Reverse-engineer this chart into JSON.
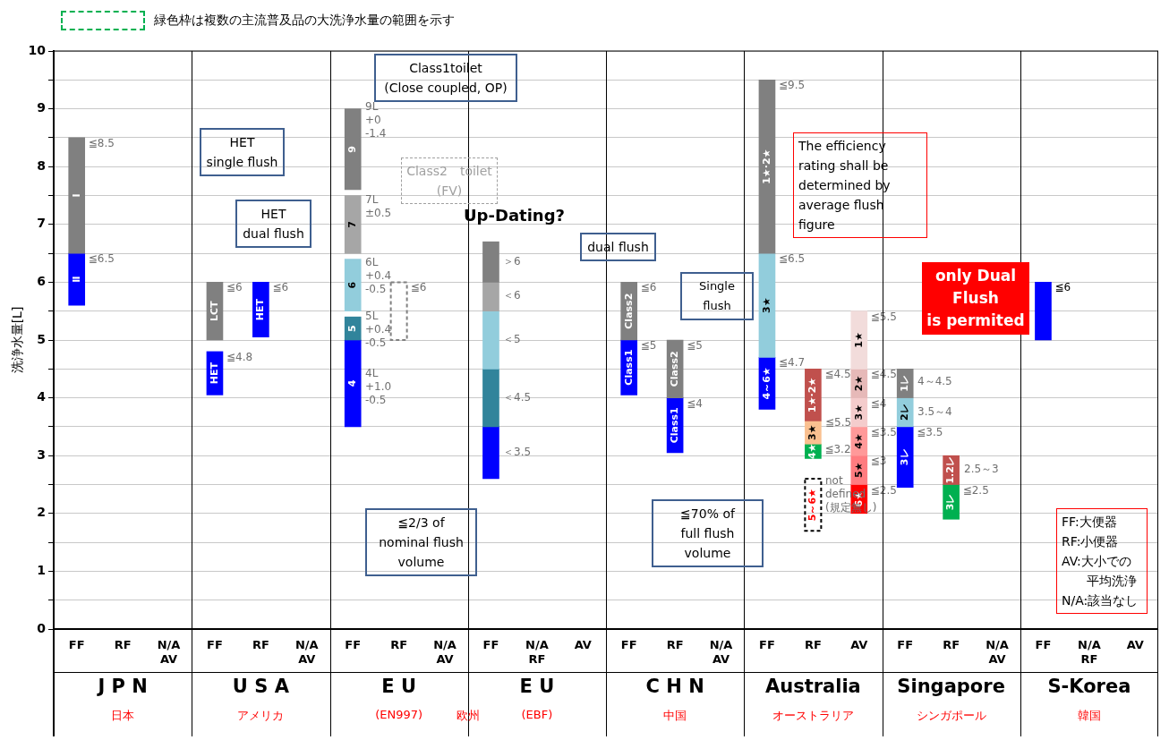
{
  "chart_data": {
    "type": "bar",
    "categories": [
      "FF",
      "RF",
      "N/A\nAV",
      "FF",
      "RF",
      "N/A\nAV",
      "FF",
      "RF",
      "N/A\nAV",
      "FF",
      "N/A\nRF",
      "AV",
      "FF",
      "RF",
      "N/A\nAV",
      "FF",
      "RF",
      "AV",
      "FF",
      "RF",
      "N/A\nAV",
      "FF",
      "N/A\nRF",
      "AV"
    ],
    "ylabel": "洗浄水量[L]",
    "ylim": [
      0,
      10
    ],
    "yticks": [
      0,
      {
        "value": 0.5,
        "label": null
      },
      1,
      {
        "value": 1.5,
        "label": null
      },
      2,
      {
        "value": 2.5,
        "label": null
      },
      3,
      {
        "value": 3.5,
        "label": null
      },
      4,
      {
        "value": 4.5,
        "label": null
      },
      5,
      {
        "value": 5.5,
        "label": null
      },
      6,
      {
        "value": 6.5,
        "label": null
      },
      7,
      {
        "value": 7.5,
        "label": null
      },
      8,
      {
        "value": 8.5,
        "label": null
      },
      9,
      {
        "value": 9.5,
        "label": null
      },
      10
    ],
    "grid": "y",
    "annotations": [
      "緑色枠は複数の主流普及品の大洗浄水量の範囲を示す",
      "Class1toilet\n(Close coupled, OP)",
      "HET\nsingle flush",
      "HET\ndual flush",
      "Class2　toilet\n(FV)",
      "Up-Dating?",
      "dual flush",
      "Single flush",
      "The efficiency rating shall be determined by average flush figure",
      "only Dual\nFlush\nis permited",
      "≦2/3 of\nnominal flush\nvolume",
      "≦70% of\nfull flush\nvolume",
      "FF:大便器\nRF:小便器\nAV:大小での平均洗浄\nN/A:該当なし",
      "J P N",
      "日本",
      "U S A",
      "アメリカ",
      "E U",
      "(EN997)",
      "E U",
      "(EBF)",
      "欧州",
      "C H N",
      "中国",
      "Australia",
      "オーストラリア",
      "Singapore",
      "シンガポール",
      "S-Korea",
      "韓国",
      "9L\n+0\n-1.4",
      "7L\n±0.5",
      "6L\n+0.4\n-0.5",
      "5L\n+0.4\n-0.5",
      "4L\n+1.0\n-0.5",
      "＞6",
      "＜6",
      "＜5",
      "＜4.5",
      "＜3.5",
      "≦5.5",
      "not\ndefined\n(規定無し)",
      "4～4.5",
      "3.5～4",
      "2.5～3",
      "≦8.5",
      "≦6.5",
      "≦6",
      "≦4.8",
      "≦6",
      "≦6",
      "≦6",
      "≦5",
      "≦5",
      "≦4",
      "≦9.5",
      "≦6.5",
      "≦4.7",
      "≦4.5",
      "≦3.2",
      "≦5.5",
      "≦4.5",
      "≦4",
      "≦3.5",
      "≦3",
      "≦2.5",
      "≦3.5",
      "≦2.5",
      "≦6"
    ],
    "series": [
      {
        "name": "Ⅰ",
        "color": "#808080",
        "values": [
          2,
          null,
          null,
          null,
          null,
          null,
          null,
          null,
          null,
          null,
          null,
          null,
          null,
          null,
          null,
          null,
          null,
          null,
          null,
          null,
          null,
          null,
          null,
          null
        ],
        "base": [
          6.5,
          null,
          null,
          null,
          null,
          null,
          null,
          null,
          null,
          null,
          null,
          null,
          null,
          null,
          null,
          null,
          null,
          null,
          null,
          null,
          null,
          null,
          null,
          null
        ]
      },
      {
        "name": "Ⅱ",
        "color": "#0000ff",
        "values": [
          0.9,
          null,
          null,
          null,
          null,
          null,
          null,
          null,
          null,
          null,
          null,
          null,
          null,
          null,
          null,
          null,
          null,
          null,
          null,
          null,
          null,
          null,
          null,
          null
        ],
        "base": [
          5.6,
          null,
          null,
          null,
          null,
          null,
          null,
          null,
          null,
          null,
          null,
          null,
          null,
          null,
          null,
          null,
          null,
          null,
          null,
          null,
          null,
          null,
          null,
          null
        ]
      },
      {
        "name": "LCT",
        "color": "#808080",
        "values": [
          null,
          null,
          null,
          1,
          null,
          null,
          null,
          null,
          null,
          null,
          null,
          null,
          null,
          null,
          null,
          null,
          null,
          null,
          null,
          null,
          null,
          null,
          null,
          null
        ],
        "base": [
          null,
          null,
          null,
          5,
          null,
          null,
          null,
          null,
          null,
          null,
          null,
          null,
          null,
          null,
          null,
          null,
          null,
          null,
          null,
          null,
          null,
          null,
          null,
          null
        ]
      },
      {
        "name": "HET",
        "color": "#0000ff",
        "values": [
          null,
          null,
          null,
          0.75,
          null,
          null,
          null,
          null,
          null,
          null,
          null,
          null,
          null,
          null,
          null,
          null,
          null,
          null,
          null,
          null,
          null,
          null,
          null,
          null
        ],
        "base": [
          null,
          null,
          null,
          4.05,
          null,
          null,
          null,
          null,
          null,
          null,
          null,
          null,
          null,
          null,
          null,
          null,
          null,
          null,
          null,
          null,
          null,
          null,
          null,
          null
        ]
      },
      {
        "name": "HET",
        "color": "#0000ff",
        "values": [
          null,
          null,
          null,
          null,
          0.95,
          null,
          null,
          null,
          null,
          null,
          null,
          null,
          null,
          null,
          null,
          null,
          null,
          null,
          null,
          null,
          null,
          null,
          null,
          null
        ],
        "base": [
          null,
          null,
          null,
          null,
          5.05,
          null,
          null,
          null,
          null,
          null,
          null,
          null,
          null,
          null,
          null,
          null,
          null,
          null,
          null,
          null,
          null,
          null,
          null,
          null
        ]
      },
      {
        "name": "9",
        "color": "#808080",
        "values": [
          null,
          null,
          null,
          null,
          null,
          null,
          1.4,
          null,
          null,
          null,
          null,
          null,
          null,
          null,
          null,
          null,
          null,
          null,
          null,
          null,
          null,
          null,
          null,
          null
        ],
        "base": [
          null,
          null,
          null,
          null,
          null,
          null,
          7.6,
          null,
          null,
          null,
          null,
          null,
          null,
          null,
          null,
          null,
          null,
          null,
          null,
          null,
          null,
          null,
          null,
          null
        ]
      },
      {
        "name": "7",
        "color": "#a6a6a6",
        "values": [
          null,
          null,
          null,
          null,
          null,
          null,
          1,
          null,
          null,
          null,
          null,
          null,
          null,
          null,
          null,
          null,
          null,
          null,
          null,
          null,
          null,
          null,
          null,
          null
        ],
        "base": [
          null,
          null,
          null,
          null,
          null,
          null,
          6.5,
          null,
          null,
          null,
          null,
          null,
          null,
          null,
          null,
          null,
          null,
          null,
          null,
          null,
          null,
          null,
          null,
          null
        ]
      },
      {
        "name": "6",
        "color": "#92cddc",
        "values": [
          null,
          null,
          null,
          null,
          null,
          null,
          0.9,
          null,
          null,
          null,
          null,
          null,
          null,
          null,
          null,
          null,
          null,
          null,
          null,
          null,
          null,
          null,
          null,
          null
        ],
        "base": [
          null,
          null,
          null,
          null,
          null,
          null,
          5.5,
          null,
          null,
          null,
          null,
          null,
          null,
          null,
          null,
          null,
          null,
          null,
          null,
          null,
          null,
          null,
          null,
          null
        ]
      },
      {
        "name": "5",
        "color": "#31849b",
        "values": [
          null,
          null,
          null,
          null,
          null,
          null,
          0.4,
          null,
          null,
          null,
          null,
          null,
          null,
          null,
          null,
          null,
          null,
          null,
          null,
          null,
          null,
          null,
          null,
          null
        ],
        "base": [
          null,
          null,
          null,
          null,
          null,
          null,
          5,
          null,
          null,
          null,
          null,
          null,
          null,
          null,
          null,
          null,
          null,
          null,
          null,
          null,
          null,
          null,
          null,
          null
        ]
      },
      {
        "name": "4",
        "color": "#0000ff",
        "values": [
          null,
          null,
          null,
          null,
          null,
          null,
          1.5,
          null,
          null,
          null,
          null,
          null,
          null,
          null,
          null,
          null,
          null,
          null,
          null,
          null,
          null,
          null,
          null,
          null
        ],
        "base": [
          null,
          null,
          null,
          null,
          null,
          null,
          3.5,
          null,
          null,
          null,
          null,
          null,
          null,
          null,
          null,
          null,
          null,
          null,
          null,
          null,
          null,
          null,
          null,
          null
        ]
      },
      {
        "color": "#808080",
        "line_style": "dashed",
        "values": [
          null,
          null,
          null,
          null,
          null,
          null,
          null,
          1,
          null,
          null,
          null,
          null,
          null,
          null,
          null,
          null,
          null,
          null,
          null,
          null,
          null,
          null,
          null,
          null
        ],
        "base": [
          null,
          null,
          null,
          null,
          null,
          null,
          null,
          5,
          null,
          null,
          null,
          null,
          null,
          null,
          null,
          null,
          null,
          null,
          null,
          null,
          null,
          null,
          null,
          null
        ]
      },
      {
        "color": "#808080",
        "values": [
          null,
          null,
          null,
          null,
          null,
          null,
          null,
          null,
          null,
          0.7,
          null,
          null,
          null,
          null,
          null,
          null,
          null,
          null,
          null,
          null,
          null,
          null,
          null,
          null
        ],
        "base": [
          null,
          null,
          null,
          null,
          null,
          null,
          null,
          null,
          null,
          6,
          null,
          null,
          null,
          null,
          null,
          null,
          null,
          null,
          null,
          null,
          null,
          null,
          null,
          null
        ]
      },
      {
        "color": "#a6a6a6",
        "values": [
          null,
          null,
          null,
          null,
          null,
          null,
          null,
          null,
          null,
          0.5,
          null,
          null,
          null,
          null,
          null,
          null,
          null,
          null,
          null,
          null,
          null,
          null,
          null,
          null
        ],
        "base": [
          null,
          null,
          null,
          null,
          null,
          null,
          null,
          null,
          null,
          5.5,
          null,
          null,
          null,
          null,
          null,
          null,
          null,
          null,
          null,
          null,
          null,
          null,
          null,
          null
        ]
      },
      {
        "color": "#92cddc",
        "values": [
          null,
          null,
          null,
          null,
          null,
          null,
          null,
          null,
          null,
          1,
          null,
          null,
          null,
          null,
          null,
          null,
          null,
          null,
          null,
          null,
          null,
          null,
          null,
          null
        ],
        "base": [
          null,
          null,
          null,
          null,
          null,
          null,
          null,
          null,
          null,
          4.5,
          null,
          null,
          null,
          null,
          null,
          null,
          null,
          null,
          null,
          null,
          null,
          null,
          null,
          null
        ]
      },
      {
        "color": "#31849b",
        "values": [
          null,
          null,
          null,
          null,
          null,
          null,
          null,
          null,
          null,
          1,
          null,
          null,
          null,
          null,
          null,
          null,
          null,
          null,
          null,
          null,
          null,
          null,
          null,
          null
        ],
        "base": [
          null,
          null,
          null,
          null,
          null,
          null,
          null,
          null,
          null,
          3.5,
          null,
          null,
          null,
          null,
          null,
          null,
          null,
          null,
          null,
          null,
          null,
          null,
          null,
          null
        ]
      },
      {
        "color": "#0000ff",
        "values": [
          null,
          null,
          null,
          null,
          null,
          null,
          null,
          null,
          null,
          0.9,
          null,
          null,
          null,
          null,
          null,
          null,
          null,
          null,
          null,
          null,
          null,
          null,
          null,
          null
        ],
        "base": [
          null,
          null,
          null,
          null,
          null,
          null,
          null,
          null,
          null,
          2.6,
          null,
          null,
          null,
          null,
          null,
          null,
          null,
          null,
          null,
          null,
          null,
          null,
          null,
          null
        ]
      },
      {
        "name": "Class2",
        "color": "#808080",
        "values": [
          null,
          null,
          null,
          null,
          null,
          null,
          null,
          null,
          null,
          null,
          null,
          null,
          1,
          null,
          null,
          null,
          null,
          null,
          null,
          null,
          null,
          null,
          null,
          null
        ],
        "base": [
          null,
          null,
          null,
          null,
          null,
          null,
          null,
          null,
          null,
          null,
          null,
          null,
          5,
          null,
          null,
          null,
          null,
          null,
          null,
          null,
          null,
          null,
          null,
          null
        ]
      },
      {
        "name": "Class1",
        "color": "#0000ff",
        "values": [
          null,
          null,
          null,
          null,
          null,
          null,
          null,
          null,
          null,
          null,
          null,
          null,
          0.95,
          null,
          null,
          null,
          null,
          null,
          null,
          null,
          null,
          null,
          null,
          null
        ],
        "base": [
          null,
          null,
          null,
          null,
          null,
          null,
          null,
          null,
          null,
          null,
          null,
          null,
          4.05,
          null,
          null,
          null,
          null,
          null,
          null,
          null,
          null,
          null,
          null,
          null
        ]
      },
      {
        "name": "Class2",
        "color": "#808080",
        "values": [
          null,
          null,
          null,
          null,
          null,
          null,
          null,
          null,
          null,
          null,
          null,
          null,
          null,
          1,
          null,
          null,
          null,
          null,
          null,
          null,
          null,
          null,
          null,
          null
        ],
        "base": [
          null,
          null,
          null,
          null,
          null,
          null,
          null,
          null,
          null,
          null,
          null,
          null,
          null,
          4,
          null,
          null,
          null,
          null,
          null,
          null,
          null,
          null,
          null,
          null
        ]
      },
      {
        "name": "Class1",
        "color": "#0000ff",
        "values": [
          null,
          null,
          null,
          null,
          null,
          null,
          null,
          null,
          null,
          null,
          null,
          null,
          null,
          0.95,
          null,
          null,
          null,
          null,
          null,
          null,
          null,
          null,
          null,
          null
        ],
        "base": [
          null,
          null,
          null,
          null,
          null,
          null,
          null,
          null,
          null,
          null,
          null,
          null,
          null,
          3.05,
          null,
          null,
          null,
          null,
          null,
          null,
          null,
          null,
          null,
          null
        ]
      },
      {
        "name": "1★·2★",
        "color": "#808080",
        "values": [
          null,
          null,
          null,
          null,
          null,
          null,
          null,
          null,
          null,
          null,
          null,
          null,
          null,
          null,
          null,
          3,
          null,
          null,
          null,
          null,
          null,
          null,
          null,
          null
        ],
        "base": [
          null,
          null,
          null,
          null,
          null,
          null,
          null,
          null,
          null,
          null,
          null,
          null,
          null,
          null,
          null,
          6.5,
          null,
          null,
          null,
          null,
          null,
          null,
          null,
          null
        ]
      },
      {
        "name": "3★",
        "color": "#92cddc",
        "values": [
          null,
          null,
          null,
          null,
          null,
          null,
          null,
          null,
          null,
          null,
          null,
          null,
          null,
          null,
          null,
          1.8,
          null,
          null,
          null,
          null,
          null,
          null,
          null,
          null
        ],
        "base": [
          null,
          null,
          null,
          null,
          null,
          null,
          null,
          null,
          null,
          null,
          null,
          null,
          null,
          null,
          null,
          4.7,
          null,
          null,
          null,
          null,
          null,
          null,
          null,
          null
        ]
      },
      {
        "name": "4～6★",
        "color": "#0000ff",
        "values": [
          null,
          null,
          null,
          null,
          null,
          null,
          null,
          null,
          null,
          null,
          null,
          null,
          null,
          null,
          null,
          0.9,
          null,
          null,
          null,
          null,
          null,
          null,
          null,
          null
        ],
        "base": [
          null,
          null,
          null,
          null,
          null,
          null,
          null,
          null,
          null,
          null,
          null,
          null,
          null,
          null,
          null,
          3.8,
          null,
          null,
          null,
          null,
          null,
          null,
          null,
          null
        ]
      },
      {
        "name": "1★·2★",
        "color": "#c0504d",
        "values": [
          null,
          null,
          null,
          null,
          null,
          null,
          null,
          null,
          null,
          null,
          null,
          null,
          null,
          null,
          null,
          null,
          0.9,
          null,
          null,
          null,
          null,
          null,
          null,
          null
        ],
        "base": [
          null,
          null,
          null,
          null,
          null,
          null,
          null,
          null,
          null,
          null,
          null,
          null,
          null,
          null,
          null,
          null,
          3.6,
          null,
          null,
          null,
          null,
          null,
          null,
          null
        ]
      },
      {
        "name": "3★",
        "color": "#fac090",
        "values": [
          null,
          null,
          null,
          null,
          null,
          null,
          null,
          null,
          null,
          null,
          null,
          null,
          null,
          null,
          null,
          null,
          0.4,
          null,
          null,
          null,
          null,
          null,
          null,
          null
        ],
        "base": [
          null,
          null,
          null,
          null,
          null,
          null,
          null,
          null,
          null,
          null,
          null,
          null,
          null,
          null,
          null,
          null,
          3.2,
          null,
          null,
          null,
          null,
          null,
          null,
          null
        ]
      },
      {
        "name": "4★",
        "color": "#00b050",
        "values": [
          null,
          null,
          null,
          null,
          null,
          null,
          null,
          null,
          null,
          null,
          null,
          null,
          null,
          null,
          null,
          null,
          0.25,
          null,
          null,
          null,
          null,
          null,
          null,
          null
        ],
        "base": [
          null,
          null,
          null,
          null,
          null,
          null,
          null,
          null,
          null,
          null,
          null,
          null,
          null,
          null,
          null,
          null,
          2.95,
          null,
          null,
          null,
          null,
          null,
          null,
          null
        ]
      },
      {
        "name": "5～6★",
        "color": "#000000",
        "line_style": "dashed",
        "values": [
          null,
          null,
          null,
          null,
          null,
          null,
          null,
          null,
          null,
          null,
          null,
          null,
          null,
          null,
          null,
          null,
          0.9,
          null,
          null,
          null,
          null,
          null,
          null,
          null
        ],
        "base": [
          null,
          null,
          null,
          null,
          null,
          null,
          null,
          null,
          null,
          null,
          null,
          null,
          null,
          null,
          null,
          null,
          1.7,
          null,
          null,
          null,
          null,
          null,
          null,
          null
        ]
      },
      {
        "name": "1★",
        "color": "#f2dcdb",
        "values": [
          null,
          null,
          null,
          null,
          null,
          null,
          null,
          null,
          null,
          null,
          null,
          null,
          null,
          null,
          null,
          null,
          null,
          1,
          null,
          null,
          null,
          null,
          null,
          null
        ],
        "base": [
          null,
          null,
          null,
          null,
          null,
          null,
          null,
          null,
          null,
          null,
          null,
          null,
          null,
          null,
          null,
          null,
          null,
          4.5,
          null,
          null,
          null,
          null,
          null,
          null
        ]
      },
      {
        "name": "2★",
        "color": "#e6b9b8",
        "values": [
          null,
          null,
          null,
          null,
          null,
          null,
          null,
          null,
          null,
          null,
          null,
          null,
          null,
          null,
          null,
          null,
          null,
          0.5,
          null,
          null,
          null,
          null,
          null,
          null
        ],
        "base": [
          null,
          null,
          null,
          null,
          null,
          null,
          null,
          null,
          null,
          null,
          null,
          null,
          null,
          null,
          null,
          null,
          null,
          4,
          null,
          null,
          null,
          null,
          null,
          null
        ]
      },
      {
        "name": "3★",
        "color": "#f4cccc",
        "values": [
          null,
          null,
          null,
          null,
          null,
          null,
          null,
          null,
          null,
          null,
          null,
          null,
          null,
          null,
          null,
          null,
          null,
          0.5,
          null,
          null,
          null,
          null,
          null,
          null
        ],
        "base": [
          null,
          null,
          null,
          null,
          null,
          null,
          null,
          null,
          null,
          null,
          null,
          null,
          null,
          null,
          null,
          null,
          null,
          3.5,
          null,
          null,
          null,
          null,
          null,
          null
        ]
      },
      {
        "name": "4★",
        "color": "#ff9999",
        "values": [
          null,
          null,
          null,
          null,
          null,
          null,
          null,
          null,
          null,
          null,
          null,
          null,
          null,
          null,
          null,
          null,
          null,
          0.5,
          null,
          null,
          null,
          null,
          null,
          null
        ],
        "base": [
          null,
          null,
          null,
          null,
          null,
          null,
          null,
          null,
          null,
          null,
          null,
          null,
          null,
          null,
          null,
          null,
          null,
          3,
          null,
          null,
          null,
          null,
          null,
          null
        ]
      },
      {
        "name": "5★",
        "color": "#ff7c80",
        "values": [
          null,
          null,
          null,
          null,
          null,
          null,
          null,
          null,
          null,
          null,
          null,
          null,
          null,
          null,
          null,
          null,
          null,
          0.5,
          null,
          null,
          null,
          null,
          null,
          null
        ],
        "base": [
          null,
          null,
          null,
          null,
          null,
          null,
          null,
          null,
          null,
          null,
          null,
          null,
          null,
          null,
          null,
          null,
          null,
          2.5,
          null,
          null,
          null,
          null,
          null,
          null
        ]
      },
      {
        "name": "6★",
        "color": "#ff0000",
        "values": [
          null,
          null,
          null,
          null,
          null,
          null,
          null,
          null,
          null,
          null,
          null,
          null,
          null,
          null,
          null,
          null,
          null,
          0.5,
          null,
          null,
          null,
          null,
          null,
          null
        ],
        "base": [
          null,
          null,
          null,
          null,
          null,
          null,
          null,
          null,
          null,
          null,
          null,
          null,
          null,
          null,
          null,
          null,
          null,
          2,
          null,
          null,
          null,
          null,
          null,
          null
        ]
      },
      {
        "name": "1レ",
        "color": "#808080",
        "values": [
          null,
          null,
          null,
          null,
          null,
          null,
          null,
          null,
          null,
          null,
          null,
          null,
          null,
          null,
          null,
          null,
          null,
          null,
          0.5,
          null,
          null,
          null,
          null,
          null
        ],
        "base": [
          null,
          null,
          null,
          null,
          null,
          null,
          null,
          null,
          null,
          null,
          null,
          null,
          null,
          null,
          null,
          null,
          null,
          null,
          4,
          null,
          null,
          null,
          null,
          null
        ]
      },
      {
        "name": "2レ",
        "color": "#92cddc",
        "values": [
          null,
          null,
          null,
          null,
          null,
          null,
          null,
          null,
          null,
          null,
          null,
          null,
          null,
          null,
          null,
          null,
          null,
          null,
          0.5,
          null,
          null,
          null,
          null,
          null
        ],
        "base": [
          null,
          null,
          null,
          null,
          null,
          null,
          null,
          null,
          null,
          null,
          null,
          null,
          null,
          null,
          null,
          null,
          null,
          null,
          3.5,
          null,
          null,
          null,
          null,
          null
        ]
      },
      {
        "name": "3レ",
        "color": "#0000ff",
        "values": [
          null,
          null,
          null,
          null,
          null,
          null,
          null,
          null,
          null,
          null,
          null,
          null,
          null,
          null,
          null,
          null,
          null,
          null,
          1.05,
          null,
          null,
          null,
          null,
          null
        ],
        "base": [
          null,
          null,
          null,
          null,
          null,
          null,
          null,
          null,
          null,
          null,
          null,
          null,
          null,
          null,
          null,
          null,
          null,
          null,
          2.45,
          null,
          null,
          null,
          null,
          null
        ]
      },
      {
        "name": "1.2レ",
        "color": "#c0504d",
        "values": [
          null,
          null,
          null,
          null,
          null,
          null,
          null,
          null,
          null,
          null,
          null,
          null,
          null,
          null,
          null,
          null,
          null,
          null,
          null,
          0.5,
          null,
          null,
          null,
          null
        ],
        "base": [
          null,
          null,
          null,
          null,
          null,
          null,
          null,
          null,
          null,
          null,
          null,
          null,
          null,
          null,
          null,
          null,
          null,
          null,
          null,
          2.5,
          null,
          null,
          null,
          null
        ]
      },
      {
        "name": "3レ",
        "color": "#00b050",
        "values": [
          null,
          null,
          null,
          null,
          null,
          null,
          null,
          null,
          null,
          null,
          null,
          null,
          null,
          null,
          null,
          null,
          null,
          null,
          null,
          0.6,
          null,
          null,
          null,
          null
        ],
        "base": [
          null,
          null,
          null,
          null,
          null,
          null,
          null,
          null,
          null,
          null,
          null,
          null,
          null,
          null,
          null,
          null,
          null,
          null,
          null,
          1.9,
          null,
          null,
          null,
          null
        ]
      },
      {
        "color": "#0000ff",
        "values": [
          null,
          null,
          null,
          null,
          null,
          null,
          null,
          null,
          null,
          null,
          null,
          null,
          null,
          null,
          null,
          null,
          null,
          null,
          null,
          null,
          null,
          1,
          null,
          null
        ],
        "base": [
          null,
          null,
          null,
          null,
          null,
          null,
          null,
          null,
          null,
          null,
          null,
          null,
          null,
          null,
          null,
          null,
          null,
          null,
          null,
          null,
          null,
          5,
          null,
          null
        ]
      }
    ]
  }
}
